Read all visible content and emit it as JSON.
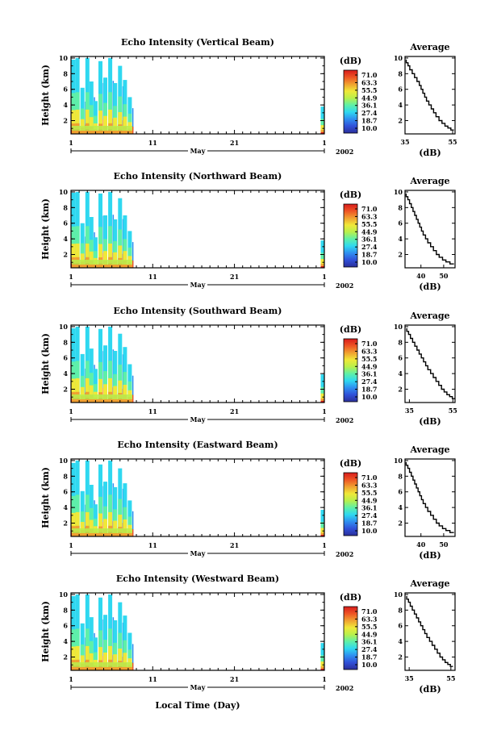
{
  "figure": {
    "x_axis_label": "Local Time (Day)",
    "month_label": "May",
    "year_label": "2002",
    "average_title": "Average",
    "db_unit": "(dB)"
  },
  "colors": {
    "colormap": [
      "#2b2f9a",
      "#3050d8",
      "#2f8ff0",
      "#2fd8f0",
      "#5ef0a8",
      "#b8f04c",
      "#f0e838",
      "#f0a030",
      "#ee5424",
      "#d81c1c"
    ]
  },
  "chart_data": [
    {
      "type": "heatmap",
      "title": "Echo Intensity (Vertical Beam)",
      "ylabel": "Height (km)",
      "ylim": [
        0.3,
        10.2
      ],
      "yticks": [
        2,
        4,
        6,
        8,
        10
      ],
      "xlim": [
        1,
        32
      ],
      "xticks": [
        "1",
        "11",
        "21",
        "1"
      ],
      "colorbar_label": "(dB)",
      "colorbar_ticks": [
        "71.0",
        "63.3",
        "55.5",
        "44.9",
        "36.1",
        "27.4",
        "18.7",
        "10.0"
      ],
      "data_columns": [
        {
          "day": 1.3,
          "top_km": 9.8
        },
        {
          "day": 1.8,
          "top_km": 10.0
        },
        {
          "day": 2.4,
          "top_km": 6.2
        },
        {
          "day": 3.0,
          "top_km": 10.0
        },
        {
          "day": 3.5,
          "top_km": 7.0
        },
        {
          "day": 4.0,
          "top_km": 4.5
        },
        {
          "day": 4.6,
          "top_km": 9.6
        },
        {
          "day": 5.2,
          "top_km": 7.5
        },
        {
          "day": 5.8,
          "top_km": 10.0
        },
        {
          "day": 6.4,
          "top_km": 6.8
        },
        {
          "day": 7.0,
          "top_km": 9.0
        },
        {
          "day": 7.6,
          "top_km": 7.2
        },
        {
          "day": 8.2,
          "top_km": 5.0
        },
        {
          "day": 31.8,
          "top_km": 3.8
        }
      ],
      "average_profile": {
        "xlim": [
          35,
          56
        ],
        "xticks": [
          35,
          55
        ],
        "xlabel": "(dB)",
        "x": [
          35.5,
          37.0,
          39.0,
          41.0,
          42.5,
          44.0,
          46.0,
          48.0,
          50.5,
          53.0,
          55.5
        ],
        "y": [
          9.8,
          9.0,
          8.0,
          7.0,
          6.0,
          5.0,
          4.0,
          3.0,
          2.0,
          1.3,
          0.8
        ]
      }
    },
    {
      "type": "heatmap",
      "title": "Echo Intensity (Northward Beam)",
      "ylabel": "Height (km)",
      "ylim": [
        0.3,
        10.2
      ],
      "yticks": [
        2,
        4,
        6,
        8,
        10
      ],
      "xlim": [
        1,
        32
      ],
      "xticks": [
        "1",
        "11",
        "21",
        "1"
      ],
      "colorbar_label": "(dB)",
      "colorbar_ticks": [
        "71.0",
        "63.3",
        "55.5",
        "44.9",
        "36.1",
        "27.4",
        "18.7",
        "10.0"
      ],
      "data_columns": [
        {
          "day": 1.3,
          "top_km": 9.9
        },
        {
          "day": 1.8,
          "top_km": 10.0
        },
        {
          "day": 2.4,
          "top_km": 6.0
        },
        {
          "day": 3.0,
          "top_km": 10.0
        },
        {
          "day": 3.5,
          "top_km": 6.8
        },
        {
          "day": 4.0,
          "top_km": 4.2
        },
        {
          "day": 4.6,
          "top_km": 9.8
        },
        {
          "day": 5.2,
          "top_km": 7.0
        },
        {
          "day": 5.8,
          "top_km": 10.0
        },
        {
          "day": 6.4,
          "top_km": 6.5
        },
        {
          "day": 7.0,
          "top_km": 9.2
        },
        {
          "day": 7.6,
          "top_km": 7.0
        },
        {
          "day": 8.2,
          "top_km": 5.0
        },
        {
          "day": 31.8,
          "top_km": 3.8
        }
      ],
      "average_profile": {
        "xlim": [
          33,
          55
        ],
        "xticks": [
          40,
          50
        ],
        "xlabel": "(dB)",
        "x": [
          33.5,
          35.0,
          36.5,
          38.0,
          39.5,
          41.0,
          43.0,
          45.5,
          48.0,
          51.0,
          54.5
        ],
        "y": [
          9.8,
          9.0,
          8.0,
          7.0,
          6.0,
          5.0,
          4.0,
          3.0,
          2.0,
          1.3,
          0.8
        ]
      }
    },
    {
      "type": "heatmap",
      "title": "Echo Intensity (Southward Beam)",
      "ylabel": "Height (km)",
      "ylim": [
        0.3,
        10.2
      ],
      "yticks": [
        2,
        4,
        6,
        8,
        10
      ],
      "xlim": [
        1,
        32
      ],
      "xticks": [
        "1",
        "11",
        "21",
        "1"
      ],
      "colorbar_label": "(dB)",
      "colorbar_ticks": [
        "71.0",
        "63.3",
        "55.5",
        "44.9",
        "36.1",
        "27.4",
        "18.7",
        "10.0"
      ],
      "data_columns": [
        {
          "day": 1.3,
          "top_km": 9.8
        },
        {
          "day": 1.8,
          "top_km": 10.0
        },
        {
          "day": 2.4,
          "top_km": 6.5
        },
        {
          "day": 3.0,
          "top_km": 10.0
        },
        {
          "day": 3.5,
          "top_km": 7.2
        },
        {
          "day": 4.0,
          "top_km": 4.6
        },
        {
          "day": 4.6,
          "top_km": 9.7
        },
        {
          "day": 5.2,
          "top_km": 7.6
        },
        {
          "day": 5.8,
          "top_km": 10.0
        },
        {
          "day": 6.4,
          "top_km": 6.9
        },
        {
          "day": 7.0,
          "top_km": 9.1
        },
        {
          "day": 7.6,
          "top_km": 7.4
        },
        {
          "day": 8.2,
          "top_km": 5.2
        },
        {
          "day": 31.8,
          "top_km": 3.9
        }
      ],
      "average_profile": {
        "xlim": [
          33,
          56
        ],
        "xticks": [
          35,
          55
        ],
        "xlabel": "(dB)",
        "x": [
          33.8,
          35.5,
          37.5,
          39.5,
          41.5,
          43.5,
          46.0,
          48.5,
          51.0,
          53.5,
          56.0
        ],
        "y": [
          9.8,
          9.0,
          8.0,
          7.0,
          6.0,
          5.0,
          4.0,
          3.0,
          2.0,
          1.3,
          0.8
        ]
      }
    },
    {
      "type": "heatmap",
      "title": "Echo Intensity (Eastward Beam)",
      "ylabel": "Height (km)",
      "ylim": [
        0.3,
        10.2
      ],
      "yticks": [
        2,
        4,
        6,
        8,
        10
      ],
      "xlim": [
        1,
        32
      ],
      "xticks": [
        "1",
        "11",
        "21",
        "1"
      ],
      "colorbar_label": "(dB)",
      "colorbar_ticks": [
        "71.0",
        "63.3",
        "55.5",
        "44.9",
        "36.1",
        "27.4",
        "18.7",
        "10.0"
      ],
      "data_columns": [
        {
          "day": 1.3,
          "top_km": 9.7
        },
        {
          "day": 1.8,
          "top_km": 10.0
        },
        {
          "day": 2.4,
          "top_km": 6.1
        },
        {
          "day": 3.0,
          "top_km": 10.0
        },
        {
          "day": 3.5,
          "top_km": 6.9
        },
        {
          "day": 4.0,
          "top_km": 4.4
        },
        {
          "day": 4.6,
          "top_km": 9.5
        },
        {
          "day": 5.2,
          "top_km": 7.3
        },
        {
          "day": 5.8,
          "top_km": 10.0
        },
        {
          "day": 6.4,
          "top_km": 6.6
        },
        {
          "day": 7.0,
          "top_km": 9.0
        },
        {
          "day": 7.6,
          "top_km": 7.1
        },
        {
          "day": 8.2,
          "top_km": 4.9
        },
        {
          "day": 31.8,
          "top_km": 3.7
        }
      ],
      "average_profile": {
        "xlim": [
          33,
          55
        ],
        "xticks": [
          40,
          50
        ],
        "xlabel": "(dB)",
        "x": [
          33.5,
          35.0,
          36.5,
          38.0,
          39.5,
          41.0,
          43.0,
          45.5,
          48.0,
          51.0,
          54.5
        ],
        "y": [
          9.8,
          9.0,
          8.0,
          7.0,
          6.0,
          5.0,
          4.0,
          3.0,
          2.0,
          1.3,
          0.8
        ]
      }
    },
    {
      "type": "heatmap",
      "title": "Echo Intensity (Westward Beam)",
      "ylabel": "Height (km)",
      "ylim": [
        0.3,
        10.2
      ],
      "yticks": [
        2,
        4,
        6,
        8,
        10
      ],
      "xlim": [
        1,
        32
      ],
      "xticks": [
        "1",
        "11",
        "21",
        "1"
      ],
      "colorbar_label": "(dB)",
      "colorbar_ticks": [
        "71.0",
        "63.3",
        "55.5",
        "44.9",
        "36.1",
        "27.4",
        "18.7",
        "10.0"
      ],
      "data_columns": [
        {
          "day": 1.3,
          "top_km": 9.8
        },
        {
          "day": 1.8,
          "top_km": 10.0
        },
        {
          "day": 2.4,
          "top_km": 6.3
        },
        {
          "day": 3.0,
          "top_km": 10.0
        },
        {
          "day": 3.5,
          "top_km": 7.1
        },
        {
          "day": 4.0,
          "top_km": 4.5
        },
        {
          "day": 4.6,
          "top_km": 9.6
        },
        {
          "day": 5.2,
          "top_km": 7.4
        },
        {
          "day": 5.8,
          "top_km": 10.0
        },
        {
          "day": 6.4,
          "top_km": 6.7
        },
        {
          "day": 7.0,
          "top_km": 9.0
        },
        {
          "day": 7.6,
          "top_km": 7.3
        },
        {
          "day": 8.2,
          "top_km": 5.1
        },
        {
          "day": 31.8,
          "top_km": 3.8
        }
      ],
      "average_profile": {
        "xlim": [
          33,
          57
        ],
        "xticks": [
          35,
          55
        ],
        "xlabel": "(dB)",
        "x": [
          33.8,
          35.5,
          37.5,
          39.5,
          41.5,
          43.5,
          46.0,
          48.5,
          51.0,
          53.5,
          56.0
        ],
        "y": [
          9.8,
          9.0,
          8.0,
          7.0,
          6.0,
          5.0,
          4.0,
          3.0,
          2.0,
          1.3,
          0.8
        ]
      }
    }
  ]
}
